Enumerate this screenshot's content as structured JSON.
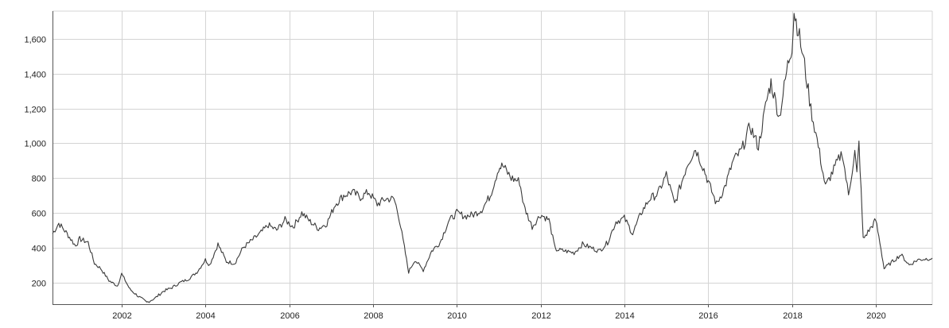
{
  "chart_data": {
    "type": "line",
    "title": "",
    "xlabel": "",
    "ylabel": "",
    "xlim": [
      2000.35,
      2021.35
    ],
    "ylim": [
      75,
      1760
    ],
    "grid": true,
    "legend": "none",
    "x_ticks": [
      {
        "value": 2002,
        "label": "2002"
      },
      {
        "value": 2004,
        "label": "2004"
      },
      {
        "value": 2006,
        "label": "2006"
      },
      {
        "value": 2008,
        "label": "2008"
      },
      {
        "value": 2010,
        "label": "2010"
      },
      {
        "value": 2012,
        "label": "2012"
      },
      {
        "value": 2014,
        "label": "2014"
      },
      {
        "value": 2016,
        "label": "2016"
      },
      {
        "value": 2018,
        "label": "2018"
      },
      {
        "value": 2020,
        "label": "2020"
      }
    ],
    "y_ticks": [
      {
        "value": 200,
        "label": "200"
      },
      {
        "value": 400,
        "label": "400"
      },
      {
        "value": 600,
        "label": "600"
      },
      {
        "value": 800,
        "label": "800"
      },
      {
        "value": 1000,
        "label": "1,000"
      },
      {
        "value": 1200,
        "label": "1,200"
      },
      {
        "value": 1400,
        "label": "1,400"
      },
      {
        "value": 1600,
        "label": "1,600"
      }
    ],
    "line_color": "#3a3a3a",
    "series": [
      {
        "x": [
          2000.35,
          2000.5,
          2000.7,
          2000.9,
          2001.0,
          2001.2,
          2001.35,
          2001.5,
          2001.7,
          2001.9,
          2002.0,
          2002.2,
          2002.4,
          2002.6,
          2002.8,
          2003.0,
          2003.2,
          2003.4,
          2003.6,
          2003.8,
          2004.0,
          2004.1,
          2004.3,
          2004.5,
          2004.7,
          2004.9,
          2005.1,
          2005.3,
          2005.5,
          2005.7,
          2005.9,
          2006.1,
          2006.3,
          2006.5,
          2006.7,
          2006.9,
          2007.1,
          2007.3,
          2007.5,
          2007.7,
          2007.9,
          2008.1,
          2008.3,
          2008.5,
          2008.6,
          2008.75,
          2008.85,
          2009.0,
          2009.2,
          2009.4,
          2009.6,
          2009.8,
          2010.0,
          2010.2,
          2010.4,
          2010.6,
          2010.8,
          2011.0,
          2011.1,
          2011.3,
          2011.5,
          2011.6,
          2011.8,
          2012.0,
          2012.2,
          2012.35,
          2012.6,
          2012.8,
          2013.0,
          2013.2,
          2013.4,
          2013.6,
          2013.8,
          2014.0,
          2014.2,
          2014.4,
          2014.6,
          2014.8,
          2015.0,
          2015.2,
          2015.4,
          2015.5,
          2015.7,
          2015.9,
          2016.0,
          2016.2,
          2016.4,
          2016.6,
          2016.8,
          2017.0,
          2017.2,
          2017.4,
          2017.5,
          2017.7,
          2017.9,
          2018.0,
          2018.05,
          2018.15,
          2018.3,
          2018.45,
          2018.6,
          2018.8,
          2019.0,
          2019.2,
          2019.35,
          2019.5,
          2019.55,
          2019.6,
          2019.7,
          2019.9,
          2020.0,
          2020.1,
          2020.2,
          2020.4,
          2020.6,
          2020.8,
          2021.0,
          2021.35
        ],
        "y": [
          480,
          540,
          480,
          410,
          450,
          430,
          310,
          280,
          210,
          180,
          250,
          160,
          120,
          85,
          110,
          150,
          170,
          200,
          220,
          260,
          330,
          300,
          420,
          320,
          310,
          400,
          440,
          480,
          530,
          500,
          560,
          520,
          600,
          550,
          510,
          540,
          650,
          700,
          720,
          690,
          720,
          650,
          680,
          680,
          600,
          400,
          260,
          330,
          270,
          380,
          430,
          550,
          600,
          580,
          590,
          620,
          700,
          860,
          870,
          800,
          780,
          640,
          520,
          590,
          560,
          390,
          380,
          370,
          420,
          400,
          380,
          430,
          550,
          570,
          480,
          600,
          680,
          710,
          820,
          650,
          800,
          880,
          970,
          850,
          780,
          650,
          750,
          900,
          960,
          1100,
          980,
          1250,
          1350,
          1150,
          1450,
          1560,
          1760,
          1650,
          1450,
          1200,
          1020,
          750,
          850,
          950,
          700,
          950,
          820,
          1000,
          450,
          520,
          560,
          430,
          280,
          320,
          360,
          300,
          330,
          340
        ]
      }
    ]
  }
}
